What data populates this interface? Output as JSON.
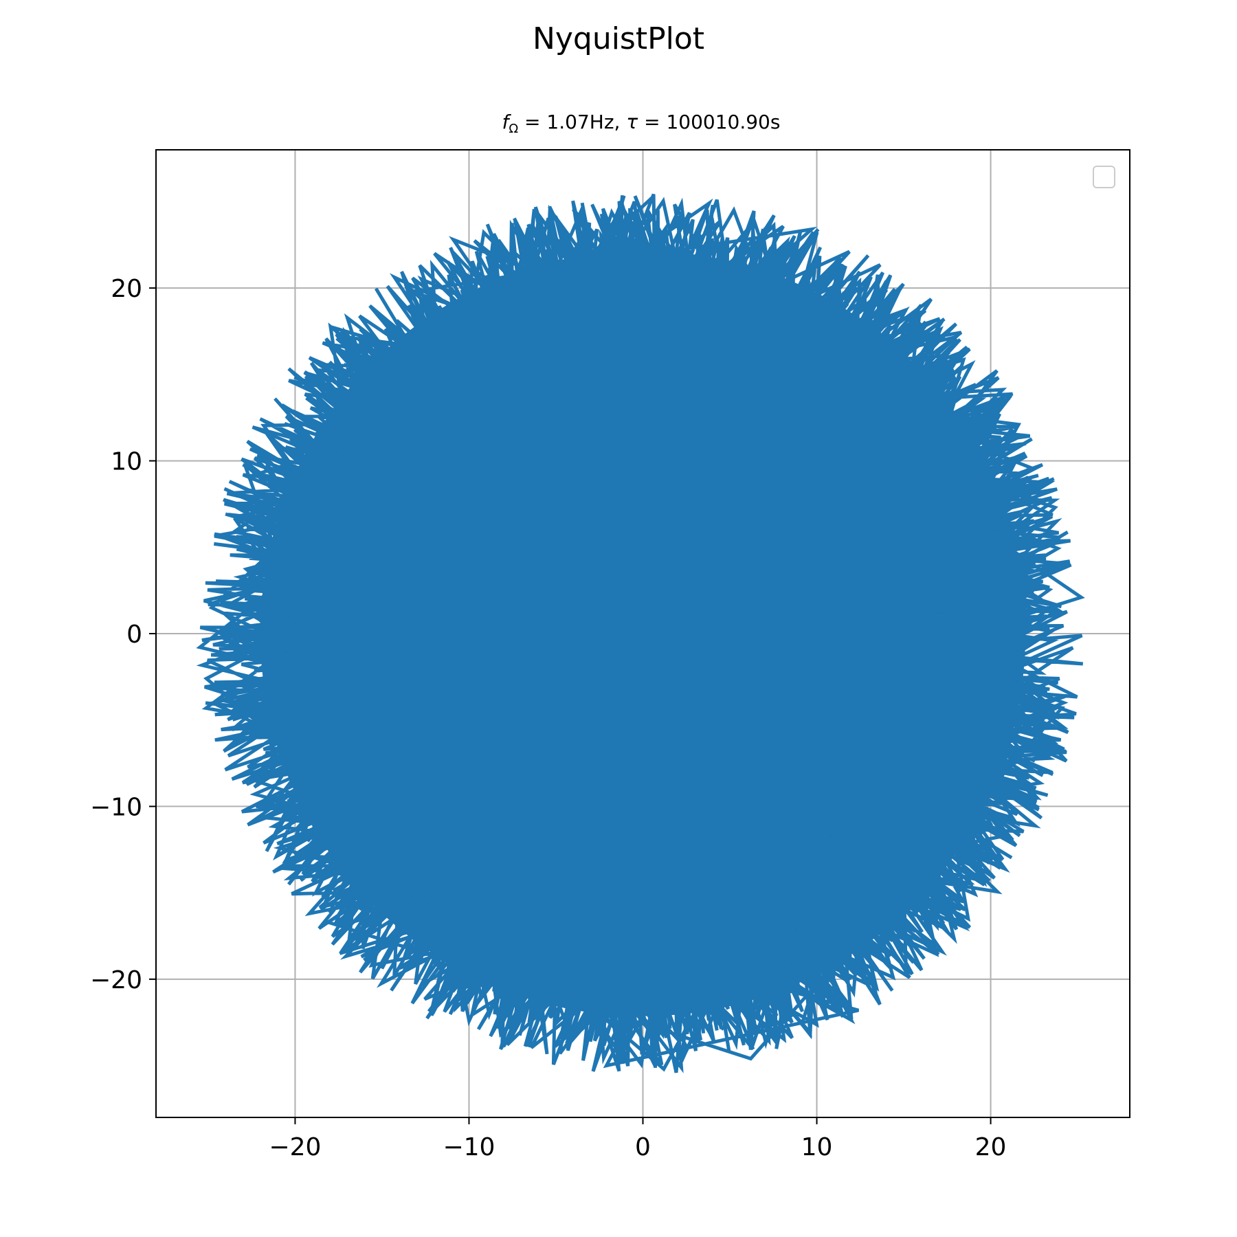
{
  "figure": {
    "suptitle": "NyquistPlot",
    "subtitle": {
      "f_symbol": "f",
      "f_subscript": "Ω",
      "f_text": " = 1.07Hz, ",
      "tau_symbol": "τ",
      "tau_text": " = 100010.90s"
    }
  },
  "chart_data": {
    "type": "line",
    "title": "NyquistPlot",
    "subtitle": "f_Ω = 1.07Hz, τ = 100010.90s",
    "xlabel": "",
    "ylabel": "",
    "xlim": [
      -28,
      28
    ],
    "ylim": [
      -28,
      28
    ],
    "xticks": [
      -20,
      -10,
      0,
      10,
      20
    ],
    "yticks": [
      -20,
      -10,
      0,
      10,
      20
    ],
    "xtick_labels": [
      "−20",
      "−10",
      "0",
      "10",
      "20"
    ],
    "ytick_labels": [
      "−20",
      "−10",
      "0",
      "10",
      "20"
    ],
    "grid": true,
    "legend": {
      "placement": "upper right",
      "entries": []
    },
    "series": [
      {
        "color": "#1f77b4",
        "description": "dense oscillating trace filling a disk of radius about 25.5 centred at the origin",
        "x": [
          0.6,
          -24.8,
          17.2,
          -10.9,
          22.3,
          -18.1,
          6.2,
          24.1,
          -23.5,
          3.8,
          -15.6,
          20.8,
          -5.4,
          25.2,
          -20.9,
          12.4,
          -2.1,
          18.9,
          -24.1,
          9.7,
          -13.3,
          23.7,
          -7.8,
          15.1,
          -25.1,
          1.2,
          21.6,
          -17.4,
          11.8,
          -22.9
        ],
        "y": [
          25.3,
          1.5,
          -18.4,
          22.8,
          9.6,
          -16.7,
          -24.6,
          -4.3,
          5.9,
          24.9,
          -19.2,
          -11.7,
          23.1,
          2.1,
          -12.4,
          -21.8,
          -25.0,
          15.6,
          -6.8,
          23.4,
          19.8,
          7.3,
          -23.8,
          18.7,
          -2.6,
          -25.2,
          12.1,
          17.2,
          -21.4,
          9.8
        ]
      }
    ]
  }
}
